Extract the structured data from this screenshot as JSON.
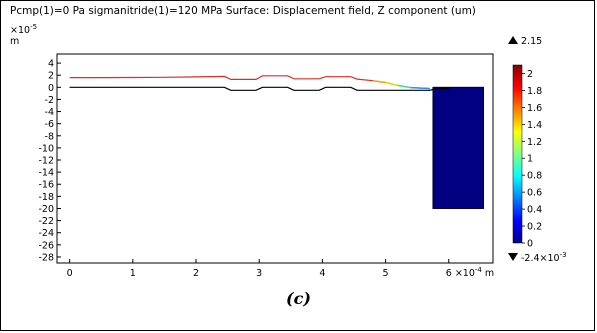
{
  "chart_data": {
    "type": "line",
    "title": "Pcmp(1)=0 Pa sigmanitride(1)=120 MPa  Surface: Displacement field, Z component (um)",
    "x_axis": {
      "ticks": [
        0,
        1,
        2,
        3,
        4,
        5,
        6
      ],
      "tick_labels": [
        "0",
        "1",
        "2",
        "3",
        "4",
        "5",
        "6"
      ],
      "multiplier": "×10",
      "multiplier_exp": "-4",
      "unit": "m",
      "range": [
        -0.2,
        6.7
      ]
    },
    "y_axis": {
      "ticks": [
        4,
        2,
        0,
        -2,
        -4,
        -6,
        -8,
        -10,
        -12,
        -14,
        -16,
        -18,
        -20,
        -22,
        -24,
        -26,
        -28
      ],
      "tick_labels": [
        "4",
        "2",
        "0",
        "-2",
        "-4",
        "-6",
        "-8",
        "-10",
        "-12",
        "-14",
        "-16",
        "-18",
        "-20",
        "-22",
        "-24",
        "-26",
        "-28"
      ],
      "multiplier": "×10",
      "multiplier_exp": "-5",
      "unit": "m",
      "range": [
        -29,
        5.5
      ]
    },
    "series": [
      {
        "color": "#000000",
        "points": [
          [
            0,
            0.0
          ],
          [
            2.45,
            0.0
          ],
          [
            2.55,
            -0.5
          ],
          [
            2.95,
            -0.5
          ],
          [
            3.05,
            0.0
          ],
          [
            3.45,
            0.0
          ],
          [
            3.55,
            -0.5
          ],
          [
            3.95,
            -0.5
          ],
          [
            4.05,
            0.0
          ],
          [
            4.45,
            0.0
          ],
          [
            4.55,
            -0.5
          ],
          [
            5.0,
            -0.5
          ],
          [
            5.7,
            -0.5
          ],
          [
            5.8,
            -0.2
          ],
          [
            6.0,
            -0.2
          ]
        ]
      },
      {
        "color": "#d73027",
        "points": [
          [
            0,
            1.6
          ],
          [
            0.5,
            1.6
          ],
          [
            1.0,
            1.62
          ],
          [
            1.5,
            1.65
          ],
          [
            2.0,
            1.72
          ],
          [
            2.45,
            1.8
          ],
          [
            2.55,
            1.3
          ],
          [
            2.95,
            1.3
          ],
          [
            3.05,
            1.9
          ],
          [
            3.45,
            1.9
          ],
          [
            3.55,
            1.4
          ],
          [
            3.95,
            1.4
          ],
          [
            4.05,
            1.75
          ],
          [
            4.45,
            1.75
          ],
          [
            4.55,
            1.35
          ],
          [
            4.8,
            1.1
          ],
          [
            5.0,
            0.8
          ],
          [
            5.2,
            0.3
          ],
          [
            5.4,
            -0.05
          ],
          [
            5.7,
            -0.2
          ]
        ]
      }
    ],
    "block": {
      "x_range": [
        5.75,
        6.55
      ],
      "y_range": [
        -20,
        0
      ],
      "color": "#000080"
    },
    "colorbar": {
      "max_label": "2.15",
      "min_label": "-2.4×10",
      "min_label_exp": "-3",
      "ticks": [
        "2",
        "1.8",
        "1.6",
        "1.4",
        "1.2",
        "1",
        "0.8",
        "0.6",
        "0.4",
        "0.2",
        "0"
      ],
      "range": [
        0,
        2.1
      ],
      "colors": [
        "#00008f",
        "#0000ff",
        "#0080ff",
        "#00ffff",
        "#80ff80",
        "#ffff00",
        "#ff8000",
        "#ff0000",
        "#800000"
      ]
    },
    "grid": false
  },
  "caption": "(c)"
}
